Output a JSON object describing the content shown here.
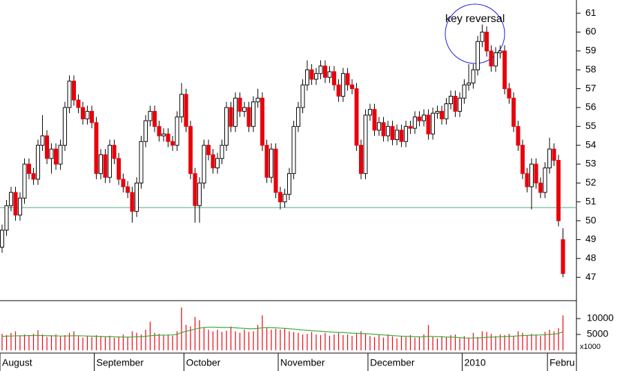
{
  "chart_data": {
    "type": "candlestick",
    "annotation": "key reversal",
    "up_color": "#ffffff",
    "down_color": "#e8000b",
    "support_color": "#4aa87a",
    "support_level": 50.7,
    "ylim": [
      45.8,
      61.7
    ],
    "yticks": [
      47,
      48,
      49,
      50,
      51,
      52,
      53,
      54,
      55,
      56,
      57,
      58,
      59,
      60,
      61
    ],
    "categories": [
      "August",
      null,
      null,
      null,
      null,
      null,
      null,
      null,
      null,
      null,
      null,
      null,
      null,
      null,
      null,
      null,
      null,
      null,
      null,
      null,
      null,
      "September",
      null,
      null,
      null,
      null,
      null,
      null,
      null,
      null,
      null,
      null,
      null,
      null,
      null,
      null,
      null,
      null,
      null,
      null,
      null,
      "October",
      null,
      null,
      null,
      null,
      null,
      null,
      null,
      null,
      null,
      null,
      null,
      null,
      null,
      null,
      null,
      null,
      null,
      null,
      null,
      null,
      "November",
      null,
      null,
      null,
      null,
      null,
      null,
      null,
      null,
      null,
      null,
      null,
      null,
      null,
      null,
      null,
      null,
      null,
      null,
      null,
      "December",
      null,
      null,
      null,
      null,
      null,
      null,
      null,
      null,
      null,
      null,
      null,
      null,
      null,
      null,
      null,
      null,
      null,
      null,
      null,
      null,
      "2010",
      null,
      null,
      null,
      null,
      null,
      null,
      null,
      null,
      null,
      null,
      null,
      null,
      null,
      null,
      null,
      null,
      null,
      null,
      "Febru",
      null,
      null,
      null
    ],
    "ohlc": [
      [
        48.6,
        49.8,
        48.3,
        49.5
      ],
      [
        49.5,
        51.1,
        49.2,
        50.8
      ],
      [
        50.8,
        51.8,
        50.5,
        51.5
      ],
      [
        51.5,
        51.8,
        50,
        50.3
      ],
      [
        50.3,
        51.5,
        50,
        51.2
      ],
      [
        51.2,
        53.3,
        50.9,
        53
      ],
      [
        53,
        53.3,
        52.2,
        52.5
      ],
      [
        52.5,
        52.8,
        51.9,
        52.2
      ],
      [
        52.2,
        54.3,
        51.9,
        54
      ],
      [
        54,
        55.6,
        53.7,
        54.5
      ],
      [
        54.5,
        54.8,
        53,
        53.3
      ],
      [
        53.3,
        54.1,
        52.5,
        53.8
      ],
      [
        53.8,
        54.1,
        52.7,
        53
      ],
      [
        53,
        54.3,
        52.7,
        54
      ],
      [
        54,
        56.3,
        53.7,
        56
      ],
      [
        56,
        57.7,
        55.7,
        57.4
      ],
      [
        57.4,
        57.7,
        56.1,
        56.4
      ],
      [
        56.4,
        56.7,
        55.7,
        56
      ],
      [
        56,
        56.3,
        55.1,
        55.4
      ],
      [
        55.4,
        56.1,
        55.1,
        55.8
      ],
      [
        55.8,
        56.1,
        54.9,
        55.2
      ],
      [
        55.2,
        55.5,
        52.2,
        52.5
      ],
      [
        52.5,
        53.8,
        52.2,
        53.5
      ],
      [
        53.5,
        53.8,
        52,
        52.3
      ],
      [
        52.3,
        54.3,
        52,
        54
      ],
      [
        54,
        54.3,
        53,
        53.3
      ],
      [
        53.3,
        53.6,
        51.9,
        52.2
      ],
      [
        52.2,
        52.5,
        51.5,
        51.8
      ],
      [
        51.8,
        52.1,
        51.2,
        51.5
      ],
      [
        51.5,
        51.8,
        49.9,
        50.5
      ],
      [
        50.5,
        52.3,
        50.2,
        52
      ],
      [
        52,
        54.5,
        51.7,
        54.2
      ],
      [
        54.2,
        55.6,
        53.9,
        55.3
      ],
      [
        55.3,
        56.1,
        55,
        55.8
      ],
      [
        55.8,
        56.1,
        54.7,
        55
      ],
      [
        55,
        55.3,
        54.2,
        54.5
      ],
      [
        54.5,
        54.9,
        54.2,
        54.6
      ],
      [
        54.6,
        54.9,
        53.9,
        54.2
      ],
      [
        54.2,
        54.5,
        53.7,
        54
      ],
      [
        54,
        55.8,
        53.7,
        55.5
      ],
      [
        55.5,
        57.3,
        55.2,
        56.7
      ],
      [
        56.7,
        57,
        54.7,
        55
      ],
      [
        55,
        55.3,
        52.2,
        52.5
      ],
      [
        52.5,
        52.8,
        49.9,
        50.8
      ],
      [
        50.8,
        52.3,
        49.9,
        52
      ],
      [
        52,
        54.3,
        51.7,
        54
      ],
      [
        54,
        54.3,
        53.2,
        53.5
      ],
      [
        53.5,
        53.8,
        52.5,
        52.8
      ],
      [
        52.8,
        53.6,
        52.5,
        53.3
      ],
      [
        53.3,
        54.3,
        53,
        54
      ],
      [
        54,
        56.3,
        53.7,
        56
      ],
      [
        56,
        56.3,
        54.7,
        55
      ],
      [
        55,
        56.8,
        54.7,
        56.5
      ],
      [
        56.5,
        56.8,
        55.5,
        55.8
      ],
      [
        55.8,
        56.3,
        55.5,
        56
      ],
      [
        56,
        56.3,
        54.7,
        55
      ],
      [
        55,
        56.6,
        54.7,
        56.3
      ],
      [
        56.3,
        57,
        56,
        56.5
      ],
      [
        56.5,
        56.8,
        53.7,
        54
      ],
      [
        54,
        54.3,
        52,
        52.3
      ],
      [
        52.3,
        54.1,
        52,
        53.8
      ],
      [
        53.8,
        54.1,
        51.2,
        51.5
      ],
      [
        51.5,
        51.8,
        50.6,
        51
      ],
      [
        51,
        51.7,
        50.7,
        51.4
      ],
      [
        51.4,
        52.8,
        51.1,
        52.5
      ],
      [
        52.5,
        55.3,
        52.2,
        55
      ],
      [
        55,
        56.3,
        54.7,
        56
      ],
      [
        56,
        57.5,
        55.7,
        57.2
      ],
      [
        57.2,
        58.5,
        56.9,
        58
      ],
      [
        58,
        58.3,
        57.2,
        57.5
      ],
      [
        57.5,
        58.1,
        57.2,
        57.8
      ],
      [
        57.8,
        58.5,
        57.5,
        58.2
      ],
      [
        58.2,
        58.5,
        57.3,
        57.6
      ],
      [
        57.6,
        58.2,
        57.3,
        57.9
      ],
      [
        57.9,
        58.2,
        56.9,
        57.2
      ],
      [
        57.2,
        57.5,
        56.3,
        56.6
      ],
      [
        56.6,
        58.1,
        56.3,
        57.8
      ],
      [
        57.8,
        58.1,
        56.9,
        57.2
      ],
      [
        57.2,
        57.5,
        56.7,
        57
      ],
      [
        57,
        57.3,
        53.7,
        54
      ],
      [
        54,
        54.3,
        52.2,
        52.5
      ],
      [
        52.5,
        55.9,
        52.2,
        55.6
      ],
      [
        55.6,
        56.2,
        55.3,
        55.9
      ],
      [
        55.9,
        56.2,
        54.5,
        54.8
      ],
      [
        54.8,
        55.5,
        54.5,
        55.2
      ],
      [
        55.2,
        55.5,
        54.2,
        54.5
      ],
      [
        54.5,
        55.3,
        54.2,
        55
      ],
      [
        55,
        55.3,
        54,
        54.3
      ],
      [
        54.3,
        55.1,
        54,
        54.8
      ],
      [
        54.8,
        55.1,
        53.9,
        54.2
      ],
      [
        54.2,
        55.3,
        53.9,
        55
      ],
      [
        55,
        55.3,
        54.6,
        54.9
      ],
      [
        54.9,
        55.8,
        54.6,
        55.5
      ],
      [
        55.5,
        55.8,
        55,
        55.3
      ],
      [
        55.3,
        55.9,
        55,
        55.6
      ],
      [
        55.6,
        55.9,
        54.3,
        54.6
      ],
      [
        54.6,
        56,
        54.3,
        55.7
      ],
      [
        55.7,
        56.1,
        55.4,
        55.8
      ],
      [
        55.8,
        56.1,
        55.1,
        55.4
      ],
      [
        55.4,
        56.5,
        55.1,
        56.2
      ],
      [
        56.2,
        56.9,
        55.9,
        56.6
      ],
      [
        56.6,
        56.9,
        55.5,
        55.8
      ],
      [
        55.8,
        56.8,
        55.5,
        56.5
      ],
      [
        56.5,
        57.5,
        56.2,
        57.2
      ],
      [
        57.2,
        58.3,
        56.9,
        57.3
      ],
      [
        57.3,
        58.3,
        57,
        58
      ],
      [
        58,
        59.8,
        57.7,
        59.5
      ],
      [
        59.5,
        60.4,
        59.2,
        60
      ],
      [
        60,
        60.3,
        58.7,
        59
      ],
      [
        59,
        59.3,
        57.9,
        58.2
      ],
      [
        58.2,
        59.2,
        57.9,
        58.9
      ],
      [
        58.9,
        59.3,
        58.6,
        59
      ],
      [
        59,
        59.3,
        56.7,
        57
      ],
      [
        57,
        57.3,
        56.2,
        56.5
      ],
      [
        56.5,
        56.8,
        54.7,
        55
      ],
      [
        55,
        55.3,
        53.7,
        54
      ],
      [
        54,
        54.3,
        52.2,
        52.5
      ],
      [
        52.5,
        52.8,
        51.5,
        51.8
      ],
      [
        51.8,
        53.3,
        50.6,
        53
      ],
      [
        53,
        53.3,
        51.7,
        52
      ],
      [
        52,
        52.3,
        51.2,
        51.5
      ],
      [
        51.5,
        53.1,
        51.2,
        52.8
      ],
      [
        52.8,
        54.4,
        52.5,
        53.8
      ],
      [
        53.8,
        54.1,
        52.9,
        53.2
      ],
      [
        53.2,
        53.5,
        49.7,
        50
      ],
      [
        49,
        49.6,
        47,
        47.2
      ]
    ],
    "volume": {
      "color": "#e8000b",
      "average_color": "#3aa83a",
      "ylim": [
        0,
        15000
      ],
      "yticks": [
        5000,
        10000
      ],
      "unit_label": "x1000",
      "values": [
        5200,
        4800,
        5500,
        6000,
        4500,
        5000,
        4800,
        5200,
        6300,
        5000,
        4200,
        4600,
        5000,
        4300,
        4800,
        5500,
        6000,
        4400,
        4000,
        4600,
        4200,
        4800,
        4500,
        4200,
        4600,
        4000,
        4400,
        5000,
        4300,
        6000,
        5500,
        5000,
        6500,
        9000,
        5500,
        5200,
        4800,
        5000,
        4600,
        6000,
        13500,
        8000,
        7500,
        10500,
        9500,
        7000,
        6500,
        6000,
        6500,
        5800,
        6200,
        7500,
        6000,
        5500,
        6500,
        5800,
        6000,
        8000,
        11000,
        7000,
        6500,
        6800,
        6500,
        7000,
        6000,
        5800,
        5500,
        5000,
        5200,
        5800,
        5000,
        4800,
        5500,
        4600,
        5000,
        5500,
        4800,
        5000,
        4500,
        5500,
        6000,
        5200,
        4500,
        4200,
        4800,
        4000,
        5000,
        4400,
        3800,
        4500,
        4200,
        4800,
        4000,
        4300,
        5000,
        8000,
        4200,
        3800,
        4500,
        4200,
        4800,
        5000,
        3800,
        4500,
        4000,
        5500,
        4200,
        6000,
        5800,
        5200,
        4500,
        5000,
        4800,
        5200,
        4500,
        6000,
        5500,
        4800,
        5200,
        5000,
        4500,
        5800,
        6500,
        6000,
        7000,
        11000
      ],
      "moving_average": [
        4400,
        4450,
        4500,
        4550,
        4600,
        4600,
        4650,
        4650,
        4700,
        4650,
        4600,
        4600,
        4550,
        4500,
        4500,
        4550,
        4600,
        4600,
        4550,
        4500,
        4450,
        4400,
        4350,
        4300,
        4300,
        4250,
        4200,
        4200,
        4150,
        4200,
        4250,
        4300,
        4400,
        4600,
        4700,
        4750,
        4800,
        4800,
        4850,
        5000,
        5600,
        6000,
        6300,
        6700,
        7000,
        7200,
        7300,
        7300,
        7250,
        7200,
        7200,
        7200,
        7100,
        7000,
        6900,
        6800,
        6800,
        6900,
        7100,
        7200,
        7150,
        7100,
        7000,
        6900,
        6800,
        6700,
        6550,
        6400,
        6300,
        6200,
        6100,
        6000,
        5900,
        5800,
        5700,
        5650,
        5600,
        5500,
        5400,
        5350,
        5300,
        5250,
        5150,
        5050,
        4950,
        4850,
        4750,
        4650,
        4550,
        4450,
        4400,
        4350,
        4300,
        4250,
        4250,
        4400,
        4350,
        4300,
        4250,
        4200,
        4150,
        4100,
        4000,
        3900,
        3850,
        3900,
        3900,
        4000,
        4100,
        4150,
        4200,
        4250,
        4300,
        4400,
        4450,
        4550,
        4650,
        4700,
        4750,
        4800,
        4850,
        4900,
        5000,
        5100,
        5300,
        5900
      ]
    }
  }
}
